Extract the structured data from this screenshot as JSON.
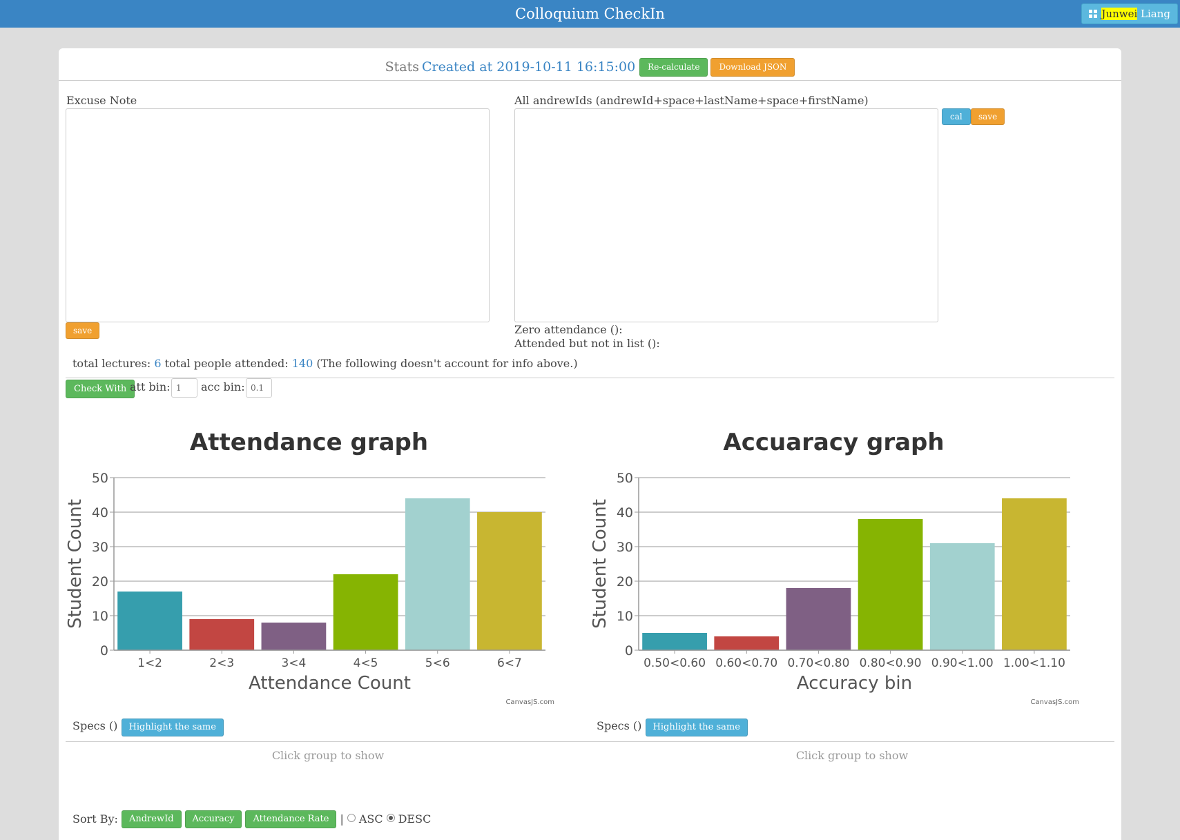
{
  "header": {
    "title": "Colloquium CheckIn",
    "user_first": "Junwei",
    "user_last": "Liang"
  },
  "stats": {
    "word": "Stats",
    "created_label": "Created at 2019-10-11 16:15:00",
    "recalc_label": "Re-calculate",
    "download_label": "Download JSON"
  },
  "excuse": {
    "label": "Excuse Note",
    "value": "",
    "save_label": "save"
  },
  "ids": {
    "label": "All andrewIds (andrewId+space+lastName+space+firstName)",
    "value": "",
    "cal_label": "cal",
    "save_label": "save",
    "zero_attendance": "Zero attendance ():",
    "not_in_list": "Attended but not in list ():"
  },
  "summary": {
    "lectures_label": "total lectures:",
    "lectures": "6",
    "people_label": "total people attended:",
    "people": "140",
    "note": "(The following doesn't account for info above.)"
  },
  "controls": {
    "check_with_label": "Check With",
    "att_bin_label": "att bin:",
    "att_bin_value": "1",
    "acc_bin_label": "acc bin:",
    "acc_bin_value": "0.1"
  },
  "chart_data": [
    {
      "type": "bar",
      "title": "Attendance graph",
      "xlabel": "Attendance Count",
      "ylabel": "Student Count",
      "ylim": [
        0,
        50
      ],
      "yticks": [
        "0",
        "10",
        "20",
        "30",
        "40",
        "50"
      ],
      "categories": [
        "1<2",
        "2<3",
        "3<4",
        "4<5",
        "5<6",
        "6<7"
      ],
      "values": [
        17,
        9,
        8,
        22,
        44,
        40
      ],
      "colors": [
        "#369EAD",
        "#C24642",
        "#7F6084",
        "#86B402",
        "#A2D1CF",
        "#C8B631"
      ],
      "credit": "CanvasJS.com"
    },
    {
      "type": "bar",
      "title": "Accuaracy graph",
      "xlabel": "Accuracy bin",
      "ylabel": "Student Count",
      "ylim": [
        0,
        50
      ],
      "yticks": [
        "0",
        "10",
        "20",
        "30",
        "40",
        "50"
      ],
      "categories": [
        "0.50<0.60",
        "0.60<0.70",
        "0.70<0.80",
        "0.80<0.90",
        "0.90<1.00",
        "1.00<1.10"
      ],
      "values": [
        5,
        4,
        18,
        38,
        31,
        44
      ],
      "colors": [
        "#369EAD",
        "#C24642",
        "#7F6084",
        "#86B402",
        "#A2D1CF",
        "#C8B631"
      ],
      "credit": "CanvasJS.com"
    }
  ],
  "specs": {
    "label": "Specs ()",
    "highlight_label": "Highlight the same",
    "click_hint": "Click group to show"
  },
  "sort": {
    "label": "Sort By:",
    "options": [
      "AndrewId",
      "Accuracy",
      "Attendance Rate"
    ],
    "divider": "|",
    "asc": "ASC",
    "desc": "DESC"
  }
}
